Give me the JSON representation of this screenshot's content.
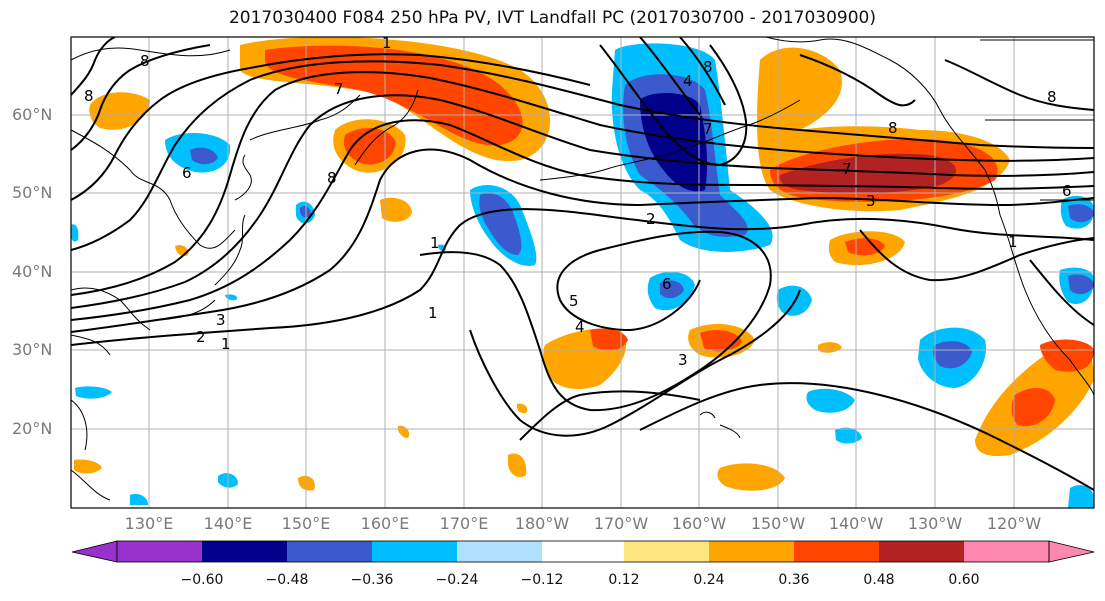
{
  "title": "2017030400 F084 250 hPa PV, IVT Landfall PC (2017030700 - 2017030900)",
  "lat_labels": [
    "60°N",
    "50°N",
    "40°N",
    "30°N",
    "20°N"
  ],
  "lon_labels": [
    "130°E",
    "140°E",
    "150°E",
    "160°E",
    "170°E",
    "180°W",
    "170°W",
    "160°W",
    "150°W",
    "140°W",
    "130°W",
    "120°W"
  ],
  "contour_labels": [
    "1",
    "7",
    "8",
    "8",
    "8",
    "6",
    "7",
    "4",
    "8",
    "2",
    "1",
    "5",
    "4",
    "1",
    "2",
    "3",
    "3",
    "1",
    "6",
    "7",
    "3",
    "8",
    "6",
    "1",
    "8"
  ],
  "colorbar": {
    "ticks": [
      "−0.60",
      "−0.48",
      "−0.36",
      "−0.24",
      "−0.12",
      "0.12",
      "0.24",
      "0.36",
      "0.48",
      "0.60"
    ],
    "colors": [
      "#9932CC",
      "#00008B",
      "#3A5ACD",
      "#00BFFF",
      "#B0E0FF",
      "#FFFFFF",
      "#FFE680",
      "#FFA500",
      "#FF4500",
      "#B22222",
      "#FF88B0"
    ]
  }
}
